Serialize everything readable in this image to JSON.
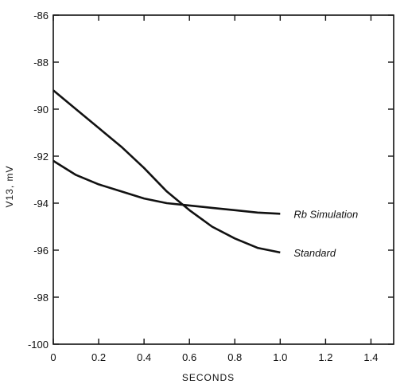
{
  "chart_data": {
    "type": "line",
    "title": "",
    "xlabel": "SECONDS",
    "ylabel": "V13, mV",
    "xlim": [
      0,
      1.5
    ],
    "ylim": [
      -100,
      -86
    ],
    "x_ticks": [
      0,
      0.2,
      0.4,
      0.6,
      0.8,
      1.0,
      1.2,
      1.4
    ],
    "x_tick_labels": [
      "0",
      "0.2",
      "0.4",
      "0.6",
      "0.8",
      "1.0",
      "1.2",
      "1.4"
    ],
    "y_ticks": [
      -86,
      -88,
      -90,
      -92,
      -94,
      -96,
      -98,
      -100
    ],
    "y_tick_labels": [
      "-86",
      "-88",
      "-90",
      "-92",
      "-94",
      "-96",
      "-98",
      "-100"
    ],
    "grid": false,
    "series": [
      {
        "name": "Rb Simulation",
        "x": [
          0,
          0.1,
          0.2,
          0.3,
          0.4,
          0.5,
          0.6,
          0.7,
          0.8,
          0.9,
          1.0
        ],
        "values": [
          -92.2,
          -92.8,
          -93.2,
          -93.5,
          -93.8,
          -94.0,
          -94.1,
          -94.2,
          -94.3,
          -94.4,
          -94.45
        ]
      },
      {
        "name": "Standard",
        "x": [
          0,
          0.1,
          0.2,
          0.3,
          0.4,
          0.5,
          0.6,
          0.7,
          0.8,
          0.9,
          1.0
        ],
        "values": [
          -89.2,
          -90.0,
          -90.8,
          -91.6,
          -92.5,
          -93.5,
          -94.3,
          -95.0,
          -95.5,
          -95.9,
          -96.1
        ]
      }
    ]
  }
}
